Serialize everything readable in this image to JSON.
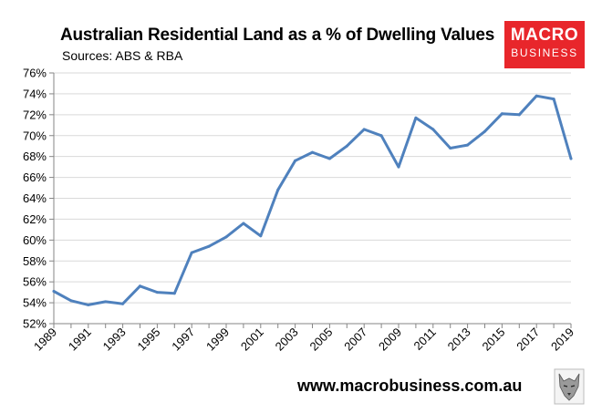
{
  "header": {
    "title": "Australian Residential Land as a % of Dwelling Values",
    "subtitle": "Sources: ABS & RBA"
  },
  "logo": {
    "line1": "MACRO",
    "line2": "BUSINESS",
    "color": "#e8262b"
  },
  "footer": {
    "website": "www.macrobusiness.com.au"
  },
  "chart_data": {
    "type": "line",
    "title": "Australian Residential Land as a % of Dwelling Values",
    "subtitle": "Sources: ABS & RBA",
    "xlabel": "",
    "ylabel": "",
    "xlim": [
      1989,
      2019
    ],
    "ylim": [
      52,
      76
    ],
    "y_ticks": [
      "52%",
      "54%",
      "56%",
      "58%",
      "60%",
      "62%",
      "64%",
      "66%",
      "68%",
      "70%",
      "72%",
      "74%",
      "76%"
    ],
    "x_ticks": [
      "1989",
      "1991",
      "1993",
      "1995",
      "1997",
      "1999",
      "2001",
      "2003",
      "2005",
      "2007",
      "2009",
      "2011",
      "2013",
      "2015",
      "2017",
      "2019"
    ],
    "grid": "horizontal",
    "line_color": "#4f81bd",
    "x": [
      1989,
      1990,
      1991,
      1992,
      1993,
      1994,
      1995,
      1996,
      1997,
      1998,
      1999,
      2000,
      2001,
      2002,
      2003,
      2004,
      2005,
      2006,
      2007,
      2008,
      2009,
      2010,
      2011,
      2012,
      2013,
      2014,
      2015,
      2016,
      2017,
      2018,
      2019
    ],
    "values": [
      55.1,
      54.2,
      53.8,
      54.1,
      53.9,
      55.6,
      55.0,
      54.9,
      58.8,
      59.4,
      60.3,
      61.6,
      60.4,
      64.8,
      67.6,
      68.4,
      67.8,
      69.0,
      70.6,
      70.0,
      67.0,
      71.7,
      70.6,
      68.8,
      69.1,
      70.4,
      72.1,
      72.0,
      73.8,
      73.5,
      67.8
    ]
  }
}
